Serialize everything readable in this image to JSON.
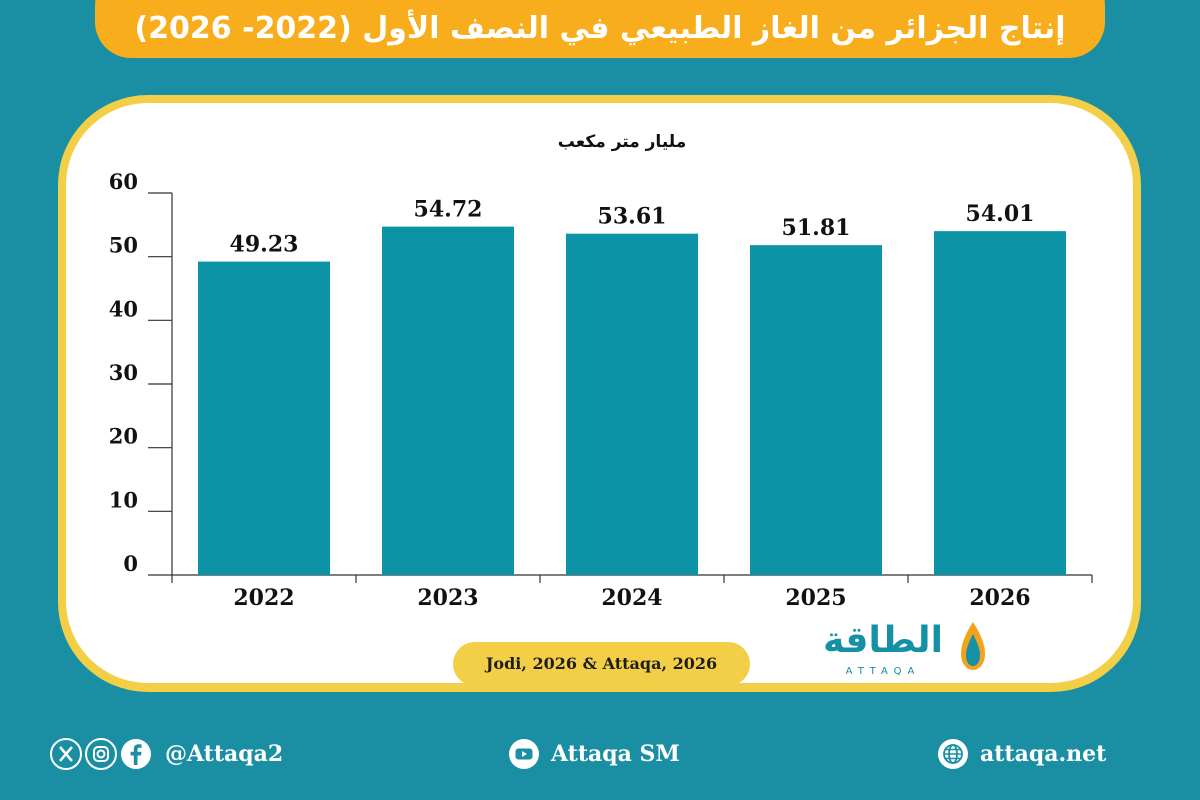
{
  "title": "إنتاج الجزائر من الغاز الطبيعي في النصف الأول (2022- 2026)",
  "source": "Jodi, 2026 & Attaqa, 2026",
  "logo": {
    "name": "الطاقة",
    "latin": "ATTAQA"
  },
  "footer": {
    "social_handle": "@Attaqa2",
    "youtube_label": "Attaqa SM",
    "website": "attaqa.net"
  },
  "colors": {
    "bar": "#0d93a6",
    "background": "#1a8fa3",
    "banner": "#f8ad1c",
    "frame": "#f3cf47"
  },
  "chart_data": {
    "type": "bar",
    "ylabel": "مليار متر مكعب",
    "categories": [
      "2022",
      "2023",
      "2024",
      "2025",
      "2026"
    ],
    "values": [
      49.23,
      54.72,
      53.61,
      51.81,
      54.01
    ],
    "value_labels": [
      "49.23",
      "54.72",
      "53.61",
      "51.81",
      "54.01"
    ],
    "ylim": [
      0,
      60
    ],
    "yticks": [
      0,
      10,
      20,
      30,
      40,
      50,
      60
    ],
    "grid": false,
    "legend": "none"
  }
}
